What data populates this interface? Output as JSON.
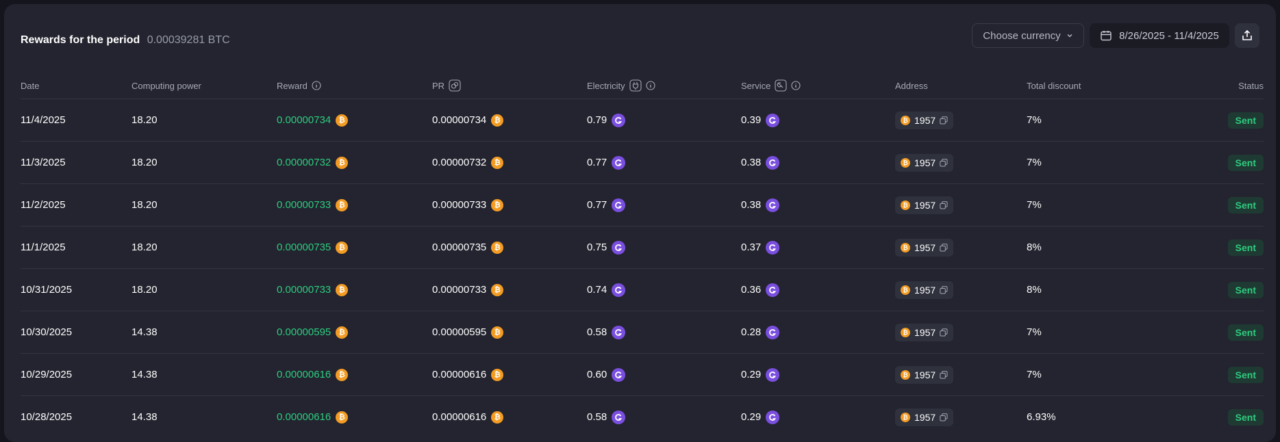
{
  "header": {
    "title": "Rewards for the period",
    "amount": "0.00039281 BTC",
    "currency_button": "Choose currency",
    "date_range": "8/26/2025 - 11/4/2025"
  },
  "columns": {
    "date": "Date",
    "computing_power": "Computing power",
    "reward": "Reward",
    "pr": "PR",
    "electricity": "Electricity",
    "service": "Service",
    "address": "Address",
    "total_discount": "Total discount",
    "status": "Status"
  },
  "coin_symbol": "₿",
  "colors": {
    "accent_green": "#2ecc7f",
    "btc_orange": "#f39c24",
    "purple_coin": "#7a4fe0"
  },
  "rows": [
    {
      "date": "11/4/2025",
      "power": "18.20",
      "reward": "0.00000734",
      "pr": "0.00000734",
      "electricity": "0.79",
      "service": "0.39",
      "address": "1957",
      "discount": "7%",
      "status": "Sent"
    },
    {
      "date": "11/3/2025",
      "power": "18.20",
      "reward": "0.00000732",
      "pr": "0.00000732",
      "electricity": "0.77",
      "service": "0.38",
      "address": "1957",
      "discount": "7%",
      "status": "Sent"
    },
    {
      "date": "11/2/2025",
      "power": "18.20",
      "reward": "0.00000733",
      "pr": "0.00000733",
      "electricity": "0.77",
      "service": "0.38",
      "address": "1957",
      "discount": "7%",
      "status": "Sent"
    },
    {
      "date": "11/1/2025",
      "power": "18.20",
      "reward": "0.00000735",
      "pr": "0.00000735",
      "electricity": "0.75",
      "service": "0.37",
      "address": "1957",
      "discount": "8%",
      "status": "Sent"
    },
    {
      "date": "10/31/2025",
      "power": "18.20",
      "reward": "0.00000733",
      "pr": "0.00000733",
      "electricity": "0.74",
      "service": "0.36",
      "address": "1957",
      "discount": "8%",
      "status": "Sent"
    },
    {
      "date": "10/30/2025",
      "power": "14.38",
      "reward": "0.00000595",
      "pr": "0.00000595",
      "electricity": "0.58",
      "service": "0.28",
      "address": "1957",
      "discount": "7%",
      "status": "Sent"
    },
    {
      "date": "10/29/2025",
      "power": "14.38",
      "reward": "0.00000616",
      "pr": "0.00000616",
      "electricity": "0.60",
      "service": "0.29",
      "address": "1957",
      "discount": "7%",
      "status": "Sent"
    },
    {
      "date": "10/28/2025",
      "power": "14.38",
      "reward": "0.00000616",
      "pr": "0.00000616",
      "electricity": "0.58",
      "service": "0.29",
      "address": "1957",
      "discount": "6.93%",
      "status": "Sent"
    }
  ]
}
